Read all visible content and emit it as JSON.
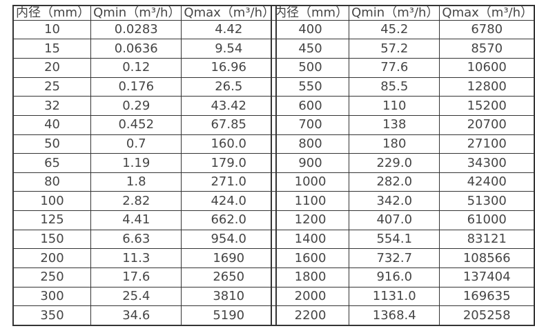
{
  "page": {
    "background_color": "#ffffff",
    "text_color": "#454545",
    "border_color": "#333333"
  },
  "tables": [
    {
      "name": "small-diameter-flow-ranges",
      "headers": [
        "内径（mm）",
        "Qmin（m³/h）",
        "Qmax（m³/h）"
      ],
      "rows": [
        [
          "10",
          "0.0283",
          "4.42"
        ],
        [
          "15",
          "0.0636",
          "9.54"
        ],
        [
          "20",
          "0.12",
          "16.96"
        ],
        [
          "25",
          "0.176",
          "26.5"
        ],
        [
          "32",
          "0.29",
          "43.42"
        ],
        [
          "40",
          "0.452",
          "67.85"
        ],
        [
          "50",
          "0.7",
          "160.0"
        ],
        [
          "65",
          "1.19",
          "179.0"
        ],
        [
          "80",
          "1.8",
          "271.0"
        ],
        [
          "100",
          "2.82",
          "424.0"
        ],
        [
          "125",
          "4.41",
          "662.0"
        ],
        [
          "150",
          "6.63",
          "954.0"
        ],
        [
          "200",
          "11.3",
          "1690"
        ],
        [
          "250",
          "17.6",
          "2650"
        ],
        [
          "300",
          "25.4",
          "3810"
        ],
        [
          "350",
          "34.6",
          "5190"
        ]
      ]
    },
    {
      "name": "large-diameter-flow-ranges",
      "headers": [
        "内径（mm）",
        "Qmin（m³/h）",
        "Qmax（m³/h）"
      ],
      "rows": [
        [
          "400",
          "45.2",
          "6780"
        ],
        [
          "450",
          "57.2",
          "8570"
        ],
        [
          "500",
          "77.6",
          "10600"
        ],
        [
          "550",
          "85.5",
          "12800"
        ],
        [
          "600",
          "110",
          "15200"
        ],
        [
          "700",
          "138",
          "20700"
        ],
        [
          "800",
          "180",
          "27100"
        ],
        [
          "900",
          "229.0",
          "34300"
        ],
        [
          "1000",
          "282.0",
          "42400"
        ],
        [
          "1100",
          "342.0",
          "51300"
        ],
        [
          "1200",
          "407.0",
          "61000"
        ],
        [
          "1400",
          "554.1",
          "83121"
        ],
        [
          "1600",
          "732.7",
          "108566"
        ],
        [
          "1800",
          "916.0",
          "137404"
        ],
        [
          "2000",
          "1131.0",
          "169635"
        ],
        [
          "2200",
          "1368.4",
          "205258"
        ]
      ]
    }
  ]
}
